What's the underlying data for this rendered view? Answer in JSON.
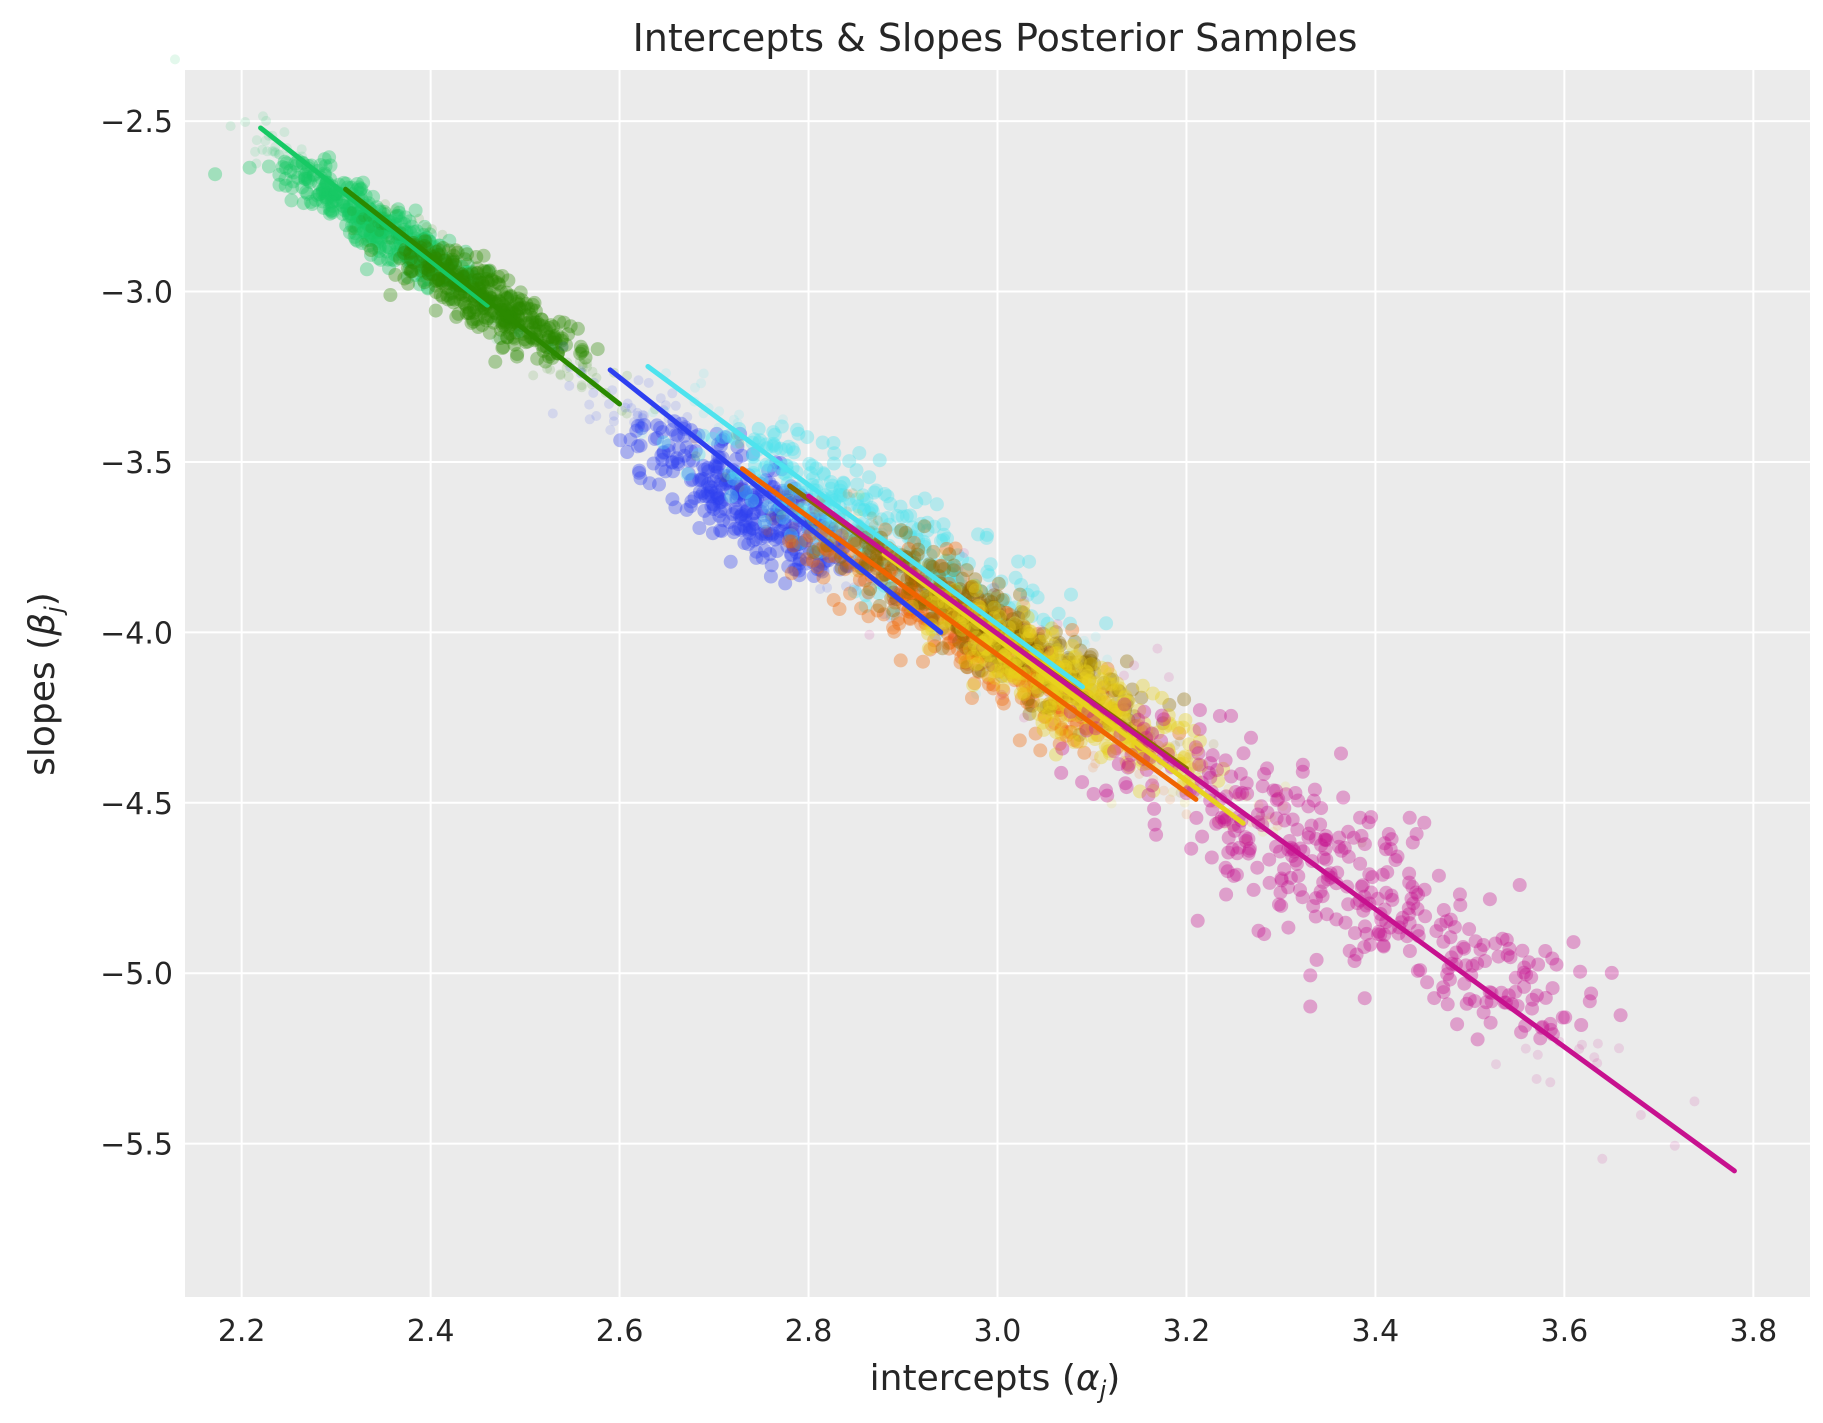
{
  "chart_data": {
    "type": "scatter",
    "title": "Intercepts & Slopes Posterior Samples",
    "xlabel_text": "intercepts (",
    "xlabel_symbol": "α",
    "xlabel_subscript": "j",
    "xlabel_close": ")",
    "ylabel_text": "slopes (",
    "ylabel_symbol": "β",
    "ylabel_subscript": "j",
    "ylabel_close": ")",
    "xlim": [
      2.14,
      3.86
    ],
    "ylim": [
      -5.95,
      -2.35
    ],
    "xticks": [
      2.2,
      2.4,
      2.6,
      2.8,
      3.0,
      3.2,
      3.4,
      3.6,
      3.8
    ],
    "yticks": [
      -2.5,
      -3.0,
      -3.5,
      -4.0,
      -4.5,
      -5.0,
      -5.5
    ],
    "xtick_labels": [
      "2.2",
      "2.4",
      "2.6",
      "2.8",
      "3.0",
      "3.2",
      "3.4",
      "3.6",
      "3.8"
    ],
    "ytick_labels": [
      "−2.5",
      "−3.0",
      "−3.5",
      "−4.0",
      "−4.5",
      "−5.0",
      "−5.5"
    ],
    "grid": true,
    "background": "#ebebeb",
    "series": [
      {
        "color": "#17c964",
        "center": [
          2.34,
          -2.8
        ],
        "spread_along": 0.13,
        "spread_across": 0.022,
        "line": [
          [
            2.22,
            -2.52
          ],
          [
            2.46,
            -3.04
          ]
        ]
      },
      {
        "color": "#2b8a00",
        "center": [
          2.46,
          -3.03
        ],
        "spread_along": 0.12,
        "spread_across": 0.022,
        "line": [
          [
            2.31,
            -2.7
          ],
          [
            2.6,
            -3.33
          ]
        ]
      },
      {
        "color": "#2d3ff0",
        "center": [
          2.74,
          -3.62
        ],
        "spread_along": 0.16,
        "spread_across": 0.035,
        "line": [
          [
            2.59,
            -3.23
          ],
          [
            2.94,
            -4.0
          ]
        ]
      },
      {
        "color": "#4ee3ee",
        "center": [
          2.88,
          -3.72
        ],
        "spread_along": 0.22,
        "spread_across": 0.04,
        "line": [
          [
            2.63,
            -3.22
          ],
          [
            3.09,
            -4.16
          ]
        ]
      },
      {
        "color": "#f06400",
        "center": [
          2.98,
          -4.02
        ],
        "spread_along": 0.22,
        "spread_across": 0.035,
        "line": [
          [
            2.73,
            -3.52
          ],
          [
            3.21,
            -4.49
          ]
        ]
      },
      {
        "color": "#8b6b00",
        "center": [
          3.0,
          -4.0
        ],
        "spread_along": 0.2,
        "spread_across": 0.03,
        "line": [
          [
            2.78,
            -3.57
          ],
          [
            3.2,
            -4.4
          ]
        ]
      },
      {
        "color": "#e8d21e",
        "center": [
          3.07,
          -4.16
        ],
        "spread_along": 0.2,
        "spread_across": 0.03,
        "line": [
          [
            2.88,
            -3.77
          ],
          [
            3.26,
            -4.56
          ]
        ]
      },
      {
        "color": "#c7118f",
        "center": [
          3.35,
          -4.7
        ],
        "spread_along": 0.34,
        "spread_across": 0.055,
        "line": [
          [
            2.8,
            -3.6
          ],
          [
            3.78,
            -5.58
          ]
        ]
      }
    ]
  }
}
